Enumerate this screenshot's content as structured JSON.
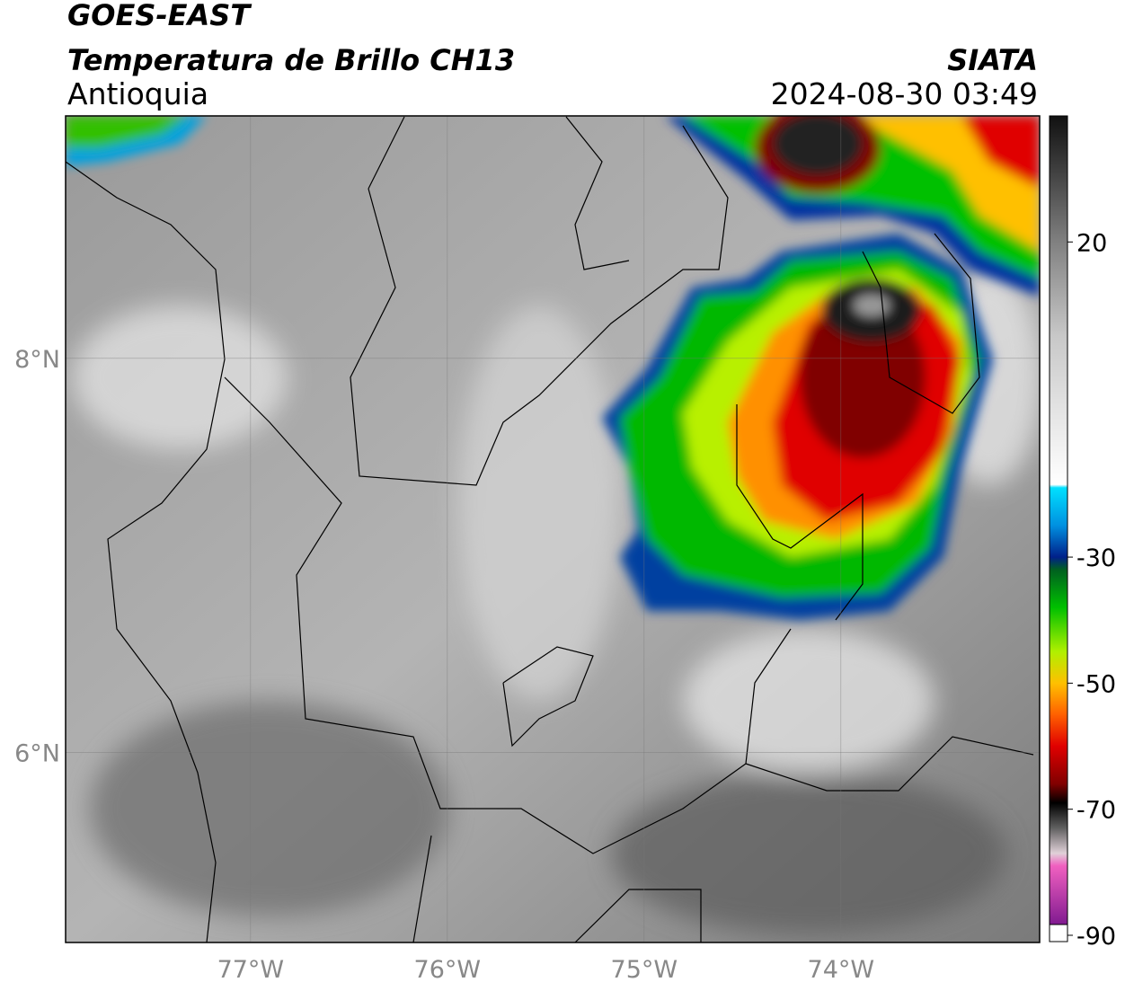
{
  "header": {
    "title": "GOES-EAST",
    "subtitle": "Temperatura de Brillo CH13",
    "region": "Antioquia",
    "source": "SIATA",
    "datetime": "2024-08-30 03:49"
  },
  "map": {
    "xlim": [
      -77.94,
      -72.99
    ],
    "ylim": [
      5.04,
      9.23
    ],
    "xticks": [
      {
        "value": -77,
        "label": "77°W"
      },
      {
        "value": -76,
        "label": "76°W"
      },
      {
        "value": -75,
        "label": "75°W"
      },
      {
        "value": -74,
        "label": "74°W"
      }
    ],
    "yticks": [
      {
        "value": 6,
        "label": "6°N"
      },
      {
        "value": 8,
        "label": "8°N"
      }
    ],
    "grid": true
  },
  "colorbar": {
    "lim": [
      -91,
      40
    ],
    "ticks": [
      -90,
      -70,
      -50,
      -30,
      20
    ],
    "stops": [
      {
        "value": 40,
        "color": "#111111"
      },
      {
        "value": 32,
        "color": "#3c3c3c"
      },
      {
        "value": 20,
        "color": "#808080"
      },
      {
        "value": 5,
        "color": "#c8c8c8"
      },
      {
        "value": -18.5,
        "color": "#ffffff"
      },
      {
        "value": -19,
        "color": "#00e0ff"
      },
      {
        "value": -25,
        "color": "#0090e0"
      },
      {
        "value": -30,
        "color": "#00208a"
      },
      {
        "value": -32,
        "color": "#006020"
      },
      {
        "value": -38,
        "color": "#00c000"
      },
      {
        "value": -45,
        "color": "#b0f000"
      },
      {
        "value": -50,
        "color": "#ffc000"
      },
      {
        "value": -55,
        "color": "#ff6000"
      },
      {
        "value": -60,
        "color": "#e00000"
      },
      {
        "value": -66,
        "color": "#800000"
      },
      {
        "value": -69,
        "color": "#000000"
      },
      {
        "value": -73,
        "color": "#606060"
      },
      {
        "value": -77,
        "color": "#e0d0d8"
      },
      {
        "value": -79,
        "color": "#f060c0"
      },
      {
        "value": -90,
        "color": "#801a90"
      }
    ]
  }
}
